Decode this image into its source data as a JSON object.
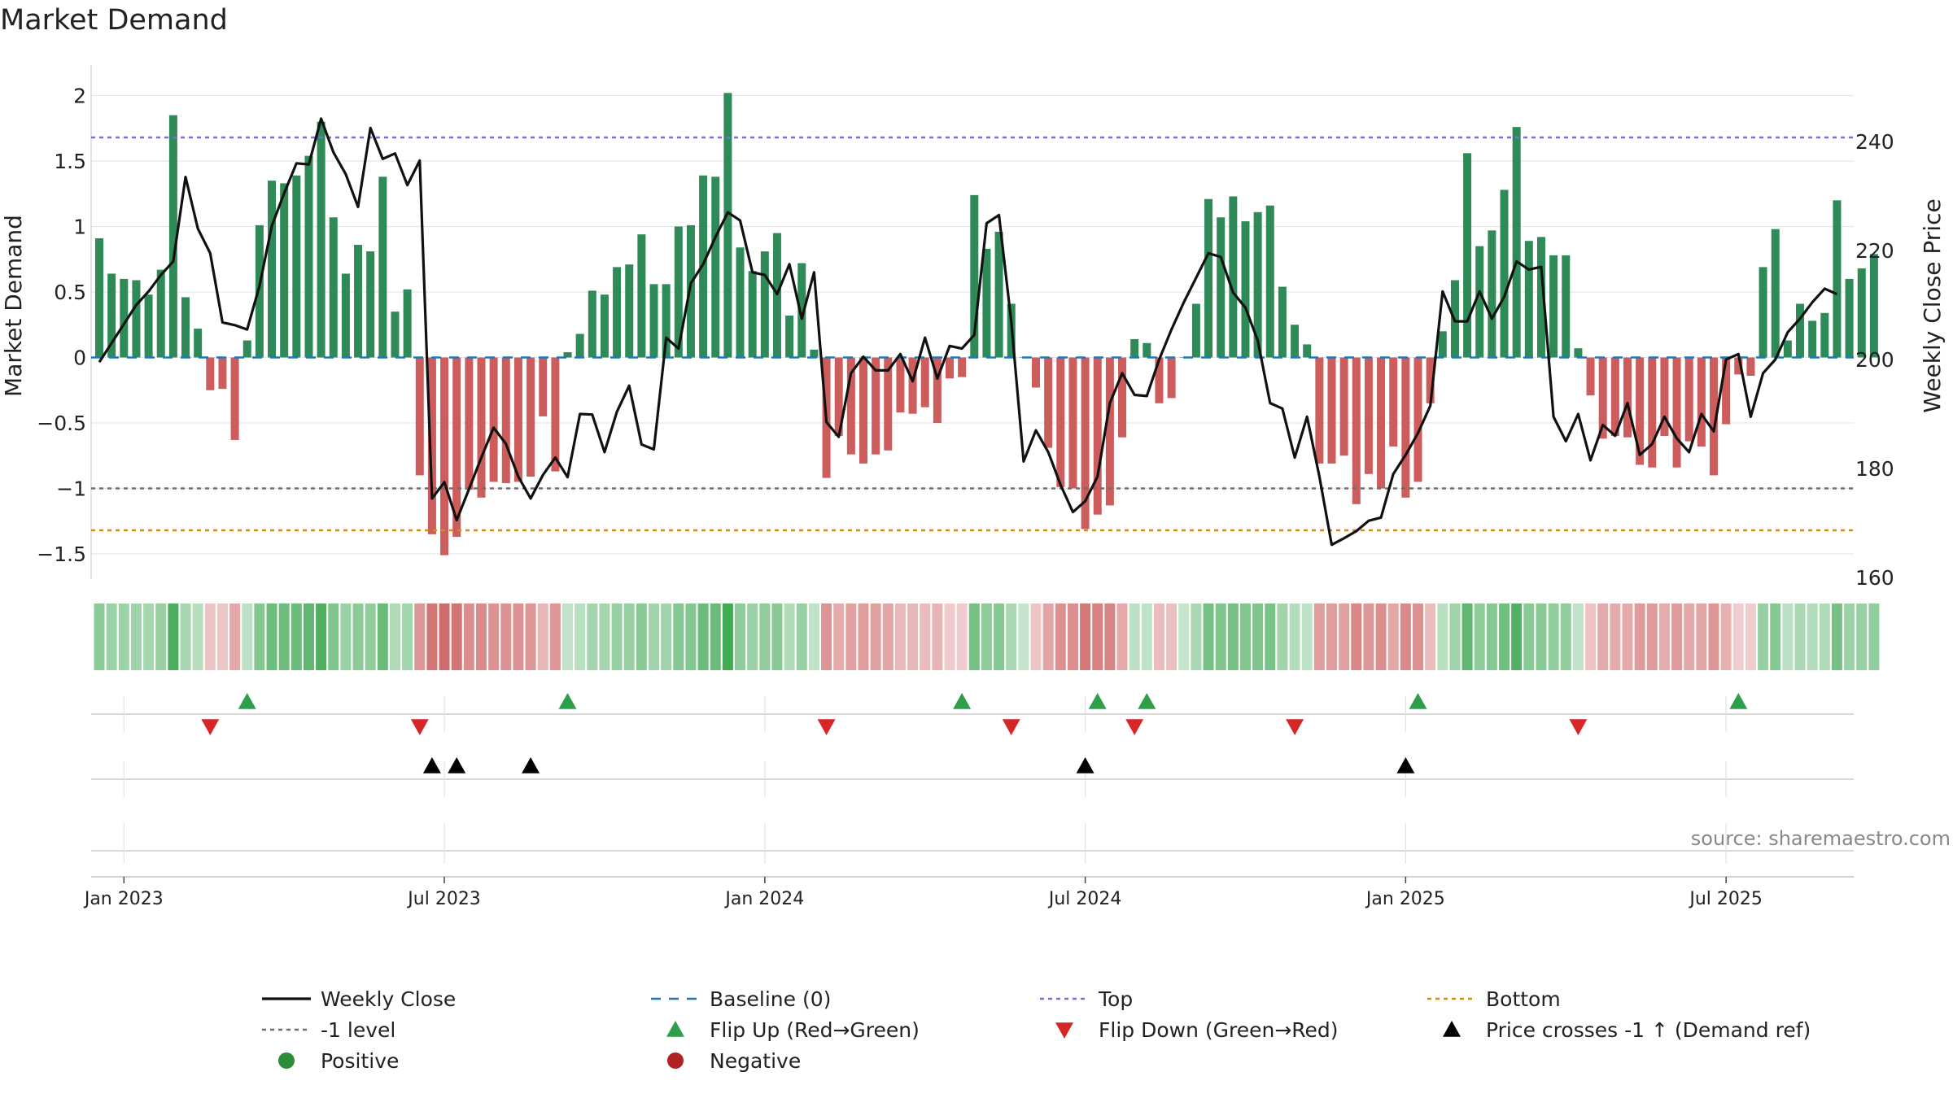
{
  "chart_data": {
    "type": "bar+line",
    "title": "Market Demand",
    "ylabel_left": "Market Demand",
    "ylabel_right": "Weekly Close Price",
    "ylim_left": [
      -1.7,
      2.2
    ],
    "ylim_right": [
      160,
      250
    ],
    "yticks_left": [
      {
        "v": 2,
        "label": "2"
      },
      {
        "v": 1.5,
        "label": "1.5"
      },
      {
        "v": 1,
        "label": "1"
      },
      {
        "v": 0.5,
        "label": "0.5"
      },
      {
        "v": 0,
        "label": "0"
      },
      {
        "v": -0.5,
        "label": "−0.5"
      },
      {
        "v": -1,
        "label": "−1"
      },
      {
        "v": -1.5,
        "label": "−1.5"
      }
    ],
    "yticks_right": [
      {
        "v": 240,
        "label": "240"
      },
      {
        "v": 220,
        "label": "220"
      },
      {
        "v": 200,
        "label": "200"
      },
      {
        "v": 180,
        "label": "180"
      },
      {
        "v": 160,
        "label": "160"
      }
    ],
    "xticks": [
      {
        "i": 2,
        "label": "Jan 2023"
      },
      {
        "i": 28,
        "label": "Jul 2023"
      },
      {
        "i": 54,
        "label": "Jan 2024"
      },
      {
        "i": 80,
        "label": "Jul 2024"
      },
      {
        "i": 106,
        "label": "Jan 2025"
      },
      {
        "i": 132,
        "label": "Jul 2025"
      }
    ],
    "reference_lines": {
      "top": 1.68,
      "bottom": -1.32,
      "minus_one": -1,
      "baseline": 0
    },
    "demand": [
      0.91,
      0.64,
      0.6,
      0.59,
      0.48,
      0.67,
      1.85,
      0.46,
      0.22,
      -0.25,
      -0.24,
      -0.63,
      0.13,
      1.01,
      1.35,
      1.33,
      1.39,
      1.54,
      1.8,
      1.07,
      0.64,
      0.86,
      0.81,
      1.38,
      0.35,
      0.52,
      -0.9,
      -1.35,
      -1.51,
      -1.37,
      -1.01,
      -1.07,
      -0.95,
      -0.96,
      -0.95,
      -0.91,
      -0.45,
      -0.87,
      0.04,
      0.18,
      0.51,
      0.48,
      0.69,
      0.71,
      0.94,
      0.56,
      0.56,
      1.0,
      1.01,
      1.39,
      1.38,
      2.02,
      0.84,
      0.66,
      0.81,
      0.95,
      0.32,
      0.72,
      0.06,
      -0.92,
      -0.6,
      -0.74,
      -0.81,
      -0.74,
      -0.71,
      -0.42,
      -0.43,
      -0.38,
      -0.5,
      -0.16,
      -0.15,
      1.24,
      0.83,
      0.96,
      0.41,
      0.0,
      -0.23,
      -0.69,
      -0.99,
      -1.0,
      -1.31,
      -1.2,
      -1.13,
      -0.61,
      0.14,
      0.11,
      -0.35,
      -0.31,
      0.0,
      0.41,
      1.21,
      1.07,
      1.23,
      1.04,
      1.11,
      1.16,
      0.54,
      0.25,
      0.1,
      -0.81,
      -0.81,
      -0.75,
      -1.12,
      -0.89,
      -1.0,
      -0.68,
      -1.07,
      -0.95,
      -0.35,
      0.2,
      0.59,
      1.56,
      0.85,
      0.97,
      1.28,
      1.76,
      0.89,
      0.92,
      0.78,
      0.78,
      0.07,
      -0.29,
      -0.62,
      -0.6,
      -0.61,
      -0.82,
      -0.84,
      -0.6,
      -0.84,
      -0.64,
      -0.68,
      -0.9,
      -0.51,
      -0.13,
      -0.14,
      0.69,
      0.98,
      0.13,
      0.41,
      0.28,
      0.34,
      1.2,
      0.6,
      0.68,
      0.79
    ],
    "weekly_close": [
      199.5,
      203,
      206.5,
      210,
      212.5,
      215.5,
      218,
      233.5,
      224,
      219.5,
      206.8,
      206.3,
      205.5,
      213.5,
      224.5,
      230.5,
      236,
      235.8,
      244.2,
      238,
      234,
      228,
      242.5,
      236.8,
      237.8,
      232,
      236.5,
      174.5,
      177.5,
      170.5,
      176.2,
      182,
      187.5,
      184.5,
      178.5,
      174.5,
      178.8,
      182,
      178.4,
      190,
      189.9,
      183,
      190.4,
      195.2,
      184.4,
      183.5,
      204,
      202,
      214,
      217.5,
      222.5,
      227,
      225.5,
      216,
      215.5,
      212,
      217.5,
      207.5,
      216,
      188.5,
      185.8,
      197.5,
      200.5,
      198,
      198,
      201,
      196,
      204,
      196.5,
      202.5,
      202,
      204.5,
      225,
      226.5,
      207,
      181.3,
      187,
      183,
      177,
      172,
      174,
      178.5,
      192,
      197.5,
      193.5,
      193.3,
      200,
      205.5,
      210.5,
      215,
      219.5,
      218.8,
      212.3,
      209.5,
      203.5,
      192,
      191,
      182,
      189.5,
      178.5,
      166,
      167.2,
      168.5,
      170.4,
      171,
      179,
      182.5,
      186.5,
      191.5,
      212.5,
      207,
      207,
      212.5,
      207.5,
      211.5,
      218,
      216.5,
      217,
      189.5,
      185,
      190,
      181.5,
      188,
      186,
      192,
      182.5,
      184.5,
      189.5,
      185.5,
      183,
      190,
      186.8,
      200,
      201,
      189.5,
      197.5,
      200,
      205,
      207.5,
      210.5,
      213,
      212
    ],
    "flip_up": [
      12,
      38,
      70,
      81,
      85,
      107,
      133
    ],
    "flip_down": [
      9,
      26,
      59,
      74,
      84,
      97,
      120
    ],
    "price_cross": [
      27,
      29,
      35,
      80,
      106
    ],
    "source_text": "source: sharemaestro.com"
  },
  "legend": [
    {
      "label": "Weekly Close",
      "marker": "line",
      "color": "#111111"
    },
    {
      "label": "Baseline (0)",
      "marker": "dash",
      "color": "#1f77b4"
    },
    {
      "label": "Top",
      "marker": "dot",
      "color": "#7b6fcf"
    },
    {
      "label": "Bottom",
      "marker": "dot",
      "color": "#d48a1f"
    },
    {
      "label": "-1 level",
      "marker": "dot",
      "color": "#6e6e6e"
    },
    {
      "label": "Flip Up (Red→Green)",
      "marker": "tri-up",
      "color": "#2e9e4a"
    },
    {
      "label": "Flip Down (Green→Red)",
      "marker": "tri-down",
      "color": "#d62728"
    },
    {
      "label": "Price crosses -1 ↑ (Demand ref)",
      "marker": "tri-up",
      "color": "#000000"
    },
    {
      "label": "Positive",
      "marker": "circle",
      "color": "#2e8b3a"
    },
    {
      "label": "Negative",
      "marker": "circle",
      "color": "#b22222"
    }
  ],
  "colors": {
    "positive": "#2e8b57",
    "negative": "#cd5c5c",
    "close": "#111111"
  }
}
